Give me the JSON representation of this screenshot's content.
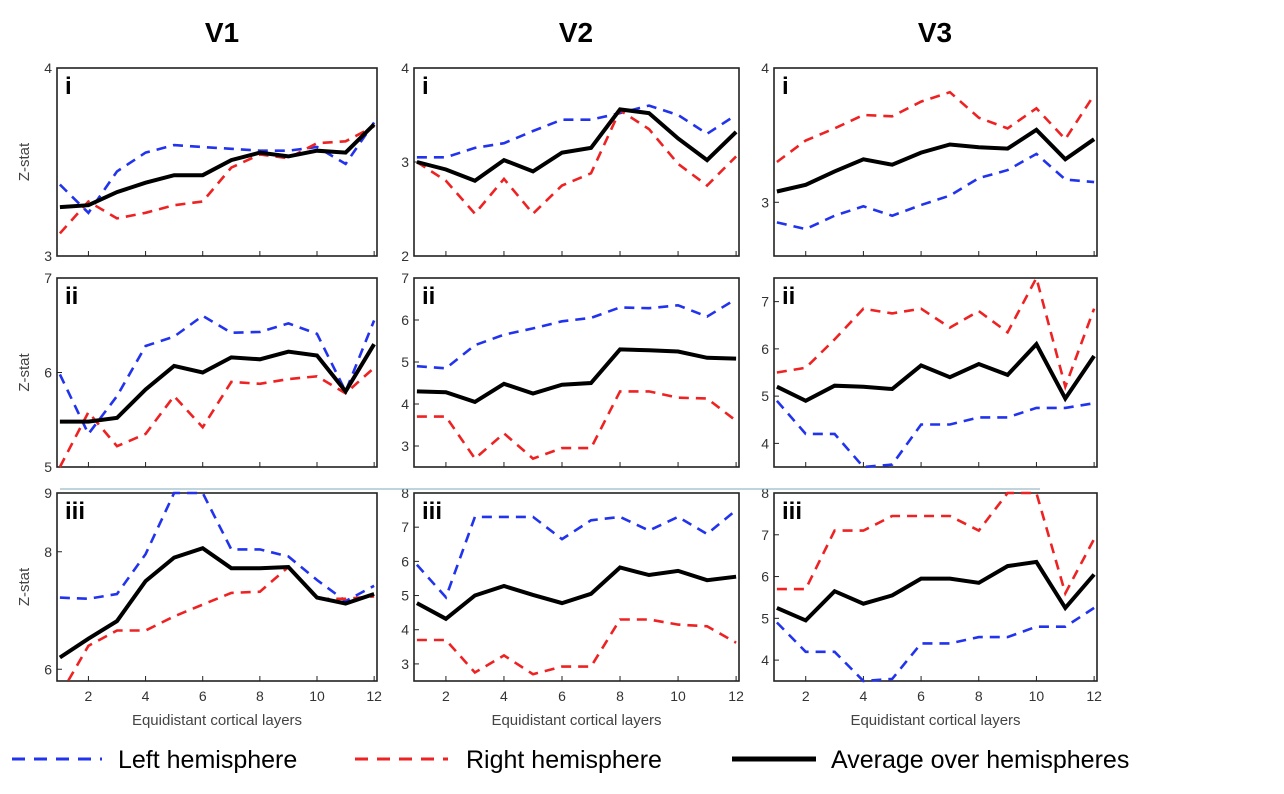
{
  "colors": {
    "left": "#2233ee",
    "right": "#ee2222",
    "average": "#000000"
  },
  "columns": [
    "V1",
    "V2",
    "V3"
  ],
  "row_labels": [
    "i",
    "ii",
    "iii"
  ],
  "xlabel": "Equidistant cortical layers",
  "ylabel": "Z-stat",
  "x_ticks": [
    2,
    4,
    6,
    8,
    10,
    12
  ],
  "legend": [
    {
      "key": "left",
      "label": "Left hemisphere",
      "style": "dashed"
    },
    {
      "key": "right",
      "label": "Right hemisphere",
      "style": "dashed"
    },
    {
      "key": "average",
      "label": "Average over hemispheres",
      "style": "solid"
    }
  ],
  "chart_data": [
    {
      "type": "line",
      "column": "V1",
      "row": "i",
      "title": "",
      "xlabel": "",
      "ylabel": "Z-stat",
      "ylim": [
        3,
        4
      ],
      "yticks": [
        3,
        4
      ],
      "x": [
        1,
        2,
        3,
        4,
        5,
        6,
        7,
        8,
        9,
        10,
        11,
        12
      ],
      "series": [
        {
          "name": "Left hemisphere",
          "values": [
            3.38,
            3.23,
            3.45,
            3.55,
            3.59,
            3.58,
            3.57,
            3.56,
            3.56,
            3.58,
            3.49,
            3.71
          ]
        },
        {
          "name": "Right hemisphere",
          "values": [
            3.12,
            3.29,
            3.2,
            3.23,
            3.27,
            3.29,
            3.47,
            3.54,
            3.52,
            3.6,
            3.61,
            3.69
          ]
        },
        {
          "name": "Average over hemispheres",
          "values": [
            3.26,
            3.27,
            3.34,
            3.39,
            3.43,
            3.43,
            3.51,
            3.55,
            3.53,
            3.56,
            3.55,
            3.7
          ]
        }
      ]
    },
    {
      "type": "line",
      "column": "V2",
      "row": "i",
      "title": "",
      "xlabel": "",
      "ylabel": "",
      "ylim": [
        2,
        4
      ],
      "yticks": [
        2,
        3,
        4
      ],
      "x": [
        1,
        2,
        3,
        4,
        5,
        6,
        7,
        8,
        9,
        10,
        11,
        12
      ],
      "series": [
        {
          "name": "Left hemisphere",
          "values": [
            3.05,
            3.05,
            3.15,
            3.2,
            3.33,
            3.45,
            3.45,
            3.52,
            3.6,
            3.5,
            3.3,
            3.5
          ]
        },
        {
          "name": "Right hemisphere",
          "values": [
            3.0,
            2.8,
            2.45,
            2.82,
            2.45,
            2.75,
            2.88,
            3.55,
            3.35,
            2.98,
            2.75,
            3.06
          ]
        },
        {
          "name": "Average over hemispheres",
          "values": [
            3.0,
            2.92,
            2.8,
            3.02,
            2.9,
            3.1,
            3.15,
            3.56,
            3.52,
            3.25,
            3.02,
            3.32
          ]
        }
      ]
    },
    {
      "type": "line",
      "column": "V3",
      "row": "i",
      "title": "",
      "xlabel": "",
      "ylabel": "",
      "ylim": [
        2.6,
        4
      ],
      "yticks": [
        3,
        4
      ],
      "x": [
        1,
        2,
        3,
        4,
        5,
        6,
        7,
        8,
        9,
        10,
        11,
        12
      ],
      "series": [
        {
          "name": "Left hemisphere",
          "values": [
            2.85,
            2.8,
            2.9,
            2.97,
            2.9,
            2.98,
            3.05,
            3.18,
            3.24,
            3.36,
            3.17,
            3.15
          ]
        },
        {
          "name": "Right hemisphere",
          "values": [
            3.3,
            3.46,
            3.55,
            3.65,
            3.64,
            3.75,
            3.82,
            3.63,
            3.55,
            3.7,
            3.47,
            3.8
          ]
        },
        {
          "name": "Average over hemispheres",
          "values": [
            3.08,
            3.13,
            3.23,
            3.32,
            3.28,
            3.37,
            3.43,
            3.41,
            3.4,
            3.54,
            3.32,
            3.47
          ]
        }
      ]
    },
    {
      "type": "line",
      "column": "V1",
      "row": "ii",
      "title": "",
      "xlabel": "",
      "ylabel": "Z-stat",
      "ylim": [
        5,
        7
      ],
      "yticks": [
        5,
        6,
        7
      ],
      "x": [
        1,
        2,
        3,
        4,
        5,
        6,
        7,
        8,
        9,
        10,
        11,
        12
      ],
      "series": [
        {
          "name": "Left hemisphere",
          "values": [
            5.98,
            5.35,
            5.75,
            6.28,
            6.38,
            6.6,
            6.42,
            6.43,
            6.52,
            6.41,
            5.8,
            6.55
          ]
        },
        {
          "name": "Right hemisphere",
          "values": [
            5.0,
            5.58,
            5.22,
            5.35,
            5.75,
            5.42,
            5.9,
            5.88,
            5.93,
            5.96,
            5.78,
            6.05
          ]
        },
        {
          "name": "Average over hemispheres",
          "values": [
            5.48,
            5.48,
            5.52,
            5.82,
            6.07,
            6.0,
            6.16,
            6.14,
            6.22,
            6.18,
            5.8,
            6.3
          ]
        }
      ]
    },
    {
      "type": "line",
      "column": "V2",
      "row": "ii",
      "title": "",
      "xlabel": "",
      "ylabel": "",
      "ylim": [
        2.5,
        7
      ],
      "yticks": [
        3,
        4,
        5,
        6,
        7
      ],
      "x": [
        1,
        2,
        3,
        4,
        5,
        6,
        7,
        8,
        9,
        10,
        11,
        12
      ],
      "series": [
        {
          "name": "Left hemisphere",
          "values": [
            4.9,
            4.85,
            5.4,
            5.65,
            5.8,
            5.97,
            6.05,
            6.3,
            6.28,
            6.35,
            6.08,
            6.5
          ]
        },
        {
          "name": "Right hemisphere",
          "values": [
            3.7,
            3.7,
            2.7,
            3.3,
            2.7,
            2.95,
            2.95,
            4.3,
            4.3,
            4.15,
            4.13,
            3.6
          ]
        },
        {
          "name": "Average over hemispheres",
          "values": [
            4.3,
            4.28,
            4.05,
            4.48,
            4.25,
            4.46,
            4.5,
            5.3,
            5.28,
            5.25,
            5.1,
            5.08
          ]
        }
      ]
    },
    {
      "type": "line",
      "column": "V3",
      "row": "ii",
      "title": "",
      "xlabel": "",
      "ylabel": "",
      "ylim": [
        3.5,
        7.5
      ],
      "yticks": [
        4,
        5,
        6,
        7
      ],
      "x": [
        1,
        2,
        3,
        4,
        5,
        6,
        7,
        8,
        9,
        10,
        11,
        12
      ],
      "series": [
        {
          "name": "Left hemisphere",
          "values": [
            4.9,
            4.2,
            4.2,
            3.5,
            3.55,
            4.4,
            4.4,
            4.55,
            4.55,
            4.75,
            4.75,
            4.85
          ]
        },
        {
          "name": "Right hemisphere",
          "values": [
            5.5,
            5.6,
            6.2,
            6.85,
            6.75,
            6.85,
            6.45,
            6.8,
            6.35,
            7.5,
            5.2,
            6.85
          ]
        },
        {
          "name": "Average over hemispheres",
          "values": [
            5.2,
            4.9,
            5.22,
            5.2,
            5.15,
            5.65,
            5.4,
            5.68,
            5.45,
            6.1,
            4.95,
            5.85
          ]
        }
      ]
    },
    {
      "type": "line",
      "column": "V1",
      "row": "iii",
      "title": "",
      "xlabel": "Equidistant cortical layers",
      "ylabel": "Z-stat",
      "ylim": [
        5.8,
        9
      ],
      "yticks": [
        6,
        8,
        9
      ],
      "x": [
        1,
        2,
        3,
        4,
        5,
        6,
        7,
        8,
        9,
        10,
        11,
        12
      ],
      "series": [
        {
          "name": "Left hemisphere",
          "values": [
            7.22,
            7.2,
            7.28,
            7.96,
            9.0,
            9.0,
            8.04,
            8.04,
            7.92,
            7.52,
            7.16,
            7.42
          ]
        },
        {
          "name": "Right hemisphere",
          "values": [
            5.56,
            6.4,
            6.66,
            6.66,
            6.9,
            7.1,
            7.3,
            7.32,
            7.74,
            7.2,
            7.2,
            7.24
          ]
        },
        {
          "name": "Average over hemispheres",
          "values": [
            6.2,
            6.52,
            6.82,
            7.5,
            7.9,
            8.06,
            7.72,
            7.72,
            7.74,
            7.22,
            7.12,
            7.28
          ]
        }
      ]
    },
    {
      "type": "line",
      "column": "V2",
      "row": "iii",
      "title": "",
      "xlabel": "Equidistant cortical layers",
      "ylabel": "",
      "ylim": [
        2.5,
        8
      ],
      "yticks": [
        3,
        4,
        5,
        6,
        7,
        8
      ],
      "x": [
        1,
        2,
        3,
        4,
        5,
        6,
        7,
        8,
        9,
        10,
        11,
        12
      ],
      "series": [
        {
          "name": "Left hemisphere",
          "values": [
            5.9,
            4.95,
            7.3,
            7.3,
            7.3,
            6.65,
            7.2,
            7.3,
            6.9,
            7.3,
            6.8,
            7.5
          ]
        },
        {
          "name": "Right hemisphere",
          "values": [
            3.7,
            3.7,
            2.75,
            3.25,
            2.7,
            2.92,
            2.92,
            4.3,
            4.3,
            4.15,
            4.1,
            3.62
          ]
        },
        {
          "name": "Average over hemispheres",
          "values": [
            4.78,
            4.32,
            5.0,
            5.28,
            5.02,
            4.78,
            5.05,
            5.82,
            5.6,
            5.72,
            5.45,
            5.55
          ]
        }
      ]
    },
    {
      "type": "line",
      "column": "V3",
      "row": "iii",
      "title": "",
      "xlabel": "Equidistant cortical layers",
      "ylabel": "",
      "ylim": [
        3.5,
        8
      ],
      "yticks": [
        4,
        5,
        6,
        7,
        8
      ],
      "x": [
        1,
        2,
        3,
        4,
        5,
        6,
        7,
        8,
        9,
        10,
        11,
        12
      ],
      "series": [
        {
          "name": "Left hemisphere",
          "values": [
            4.9,
            4.2,
            4.2,
            3.5,
            3.55,
            4.4,
            4.4,
            4.55,
            4.55,
            4.8,
            4.8,
            5.25
          ]
        },
        {
          "name": "Right hemisphere",
          "values": [
            5.7,
            5.7,
            7.1,
            7.1,
            7.45,
            7.45,
            7.45,
            7.1,
            8.0,
            8.0,
            5.6,
            6.9
          ]
        },
        {
          "name": "Average over hemispheres",
          "values": [
            5.25,
            4.95,
            5.65,
            5.35,
            5.55,
            5.95,
            5.95,
            5.85,
            6.25,
            6.35,
            5.25,
            6.05
          ]
        }
      ]
    }
  ]
}
